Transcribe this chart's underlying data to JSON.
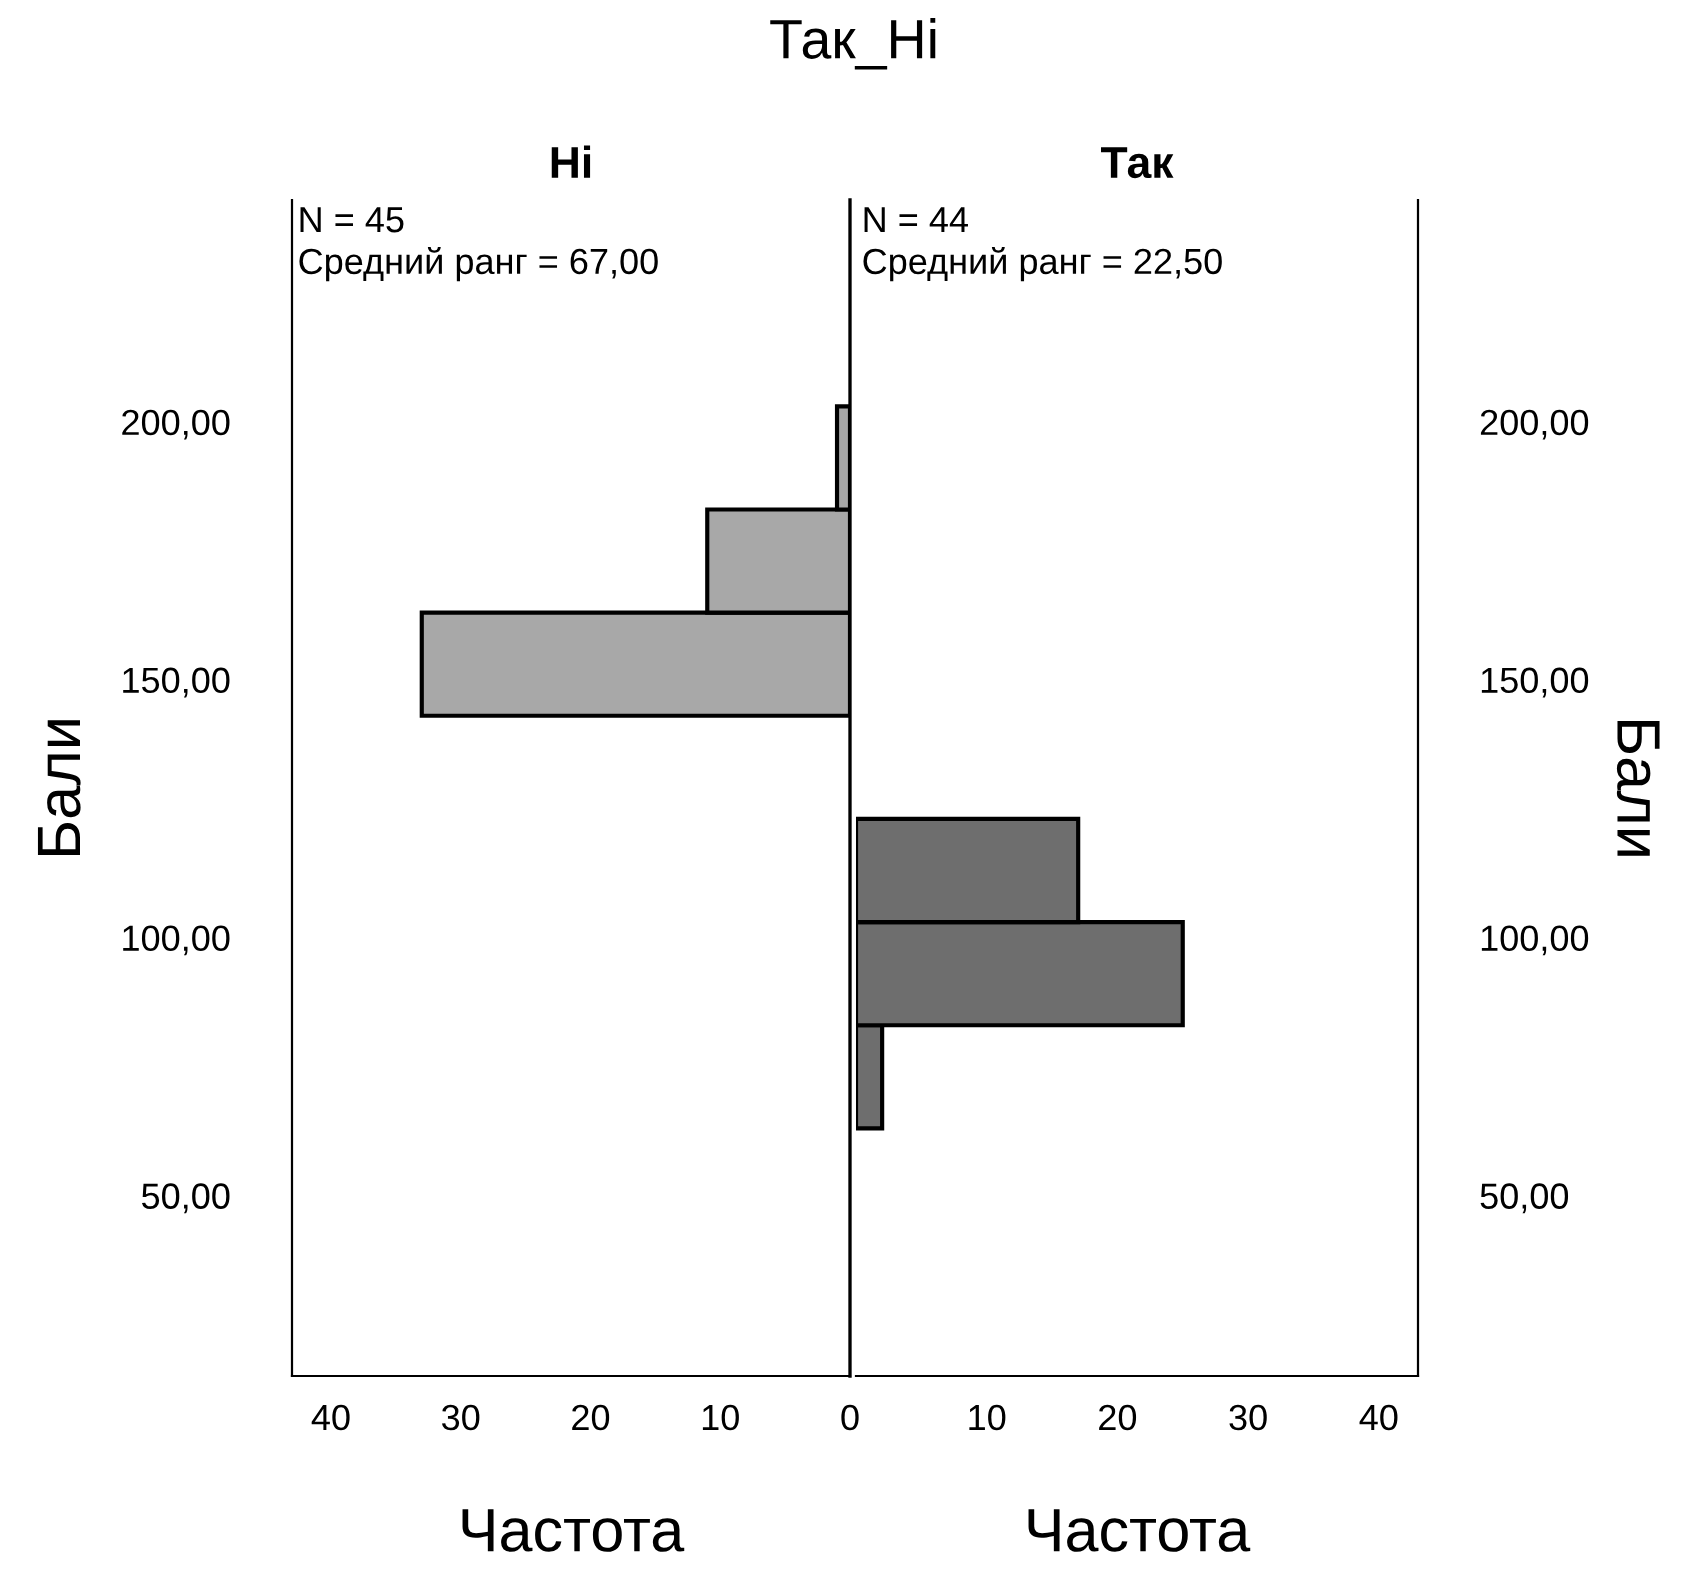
{
  "chart_data": [
    {
      "type": "histogram",
      "orientation": "horizontal",
      "title": "Ні",
      "xlabel": "Частота",
      "ylabel": "Бали",
      "annotations": [
        "Так_Ні",
        "N = 45",
        "Средний ранг = 67,00"
      ],
      "bins": [
        63,
        83,
        103,
        123,
        143,
        163,
        183,
        203
      ],
      "values": [
        0,
        0,
        0,
        0,
        33,
        11,
        1
      ],
      "color": "#a8a8a8",
      "xlim": [
        43,
        0
      ],
      "xticks": [
        40,
        30,
        20,
        10,
        0
      ],
      "ylim": [
        15,
        243
      ],
      "yticks": [
        {
          "value": 50,
          "label": "50,00"
        },
        {
          "value": 100,
          "label": "100,00"
        },
        {
          "value": 150,
          "label": "150,00"
        },
        {
          "value": 200,
          "label": "200,00"
        }
      ],
      "grid": false
    },
    {
      "type": "histogram",
      "orientation": "horizontal",
      "title": "Так",
      "xlabel": "Частота",
      "ylabel": "Бали",
      "annotations": [
        "N = 44",
        "Средний ранг = 22,50"
      ],
      "bins": [
        63,
        83,
        103,
        123,
        143,
        163,
        183,
        203
      ],
      "values": [
        2,
        25,
        17,
        0,
        0,
        0,
        0
      ],
      "color": "#6e6e6e",
      "xlim": [
        0,
        43
      ],
      "xticks": [
        {
          "value": 0,
          "label": null
        },
        10,
        20,
        30,
        40
      ],
      "ylim": [
        15,
        243
      ],
      "yticks": [
        {
          "value": 50,
          "label": "50,00"
        },
        {
          "value": 100,
          "label": "100,00"
        },
        {
          "value": 150,
          "label": "150,00"
        },
        {
          "value": 200,
          "label": "200,00"
        }
      ],
      "grid": false
    }
  ]
}
